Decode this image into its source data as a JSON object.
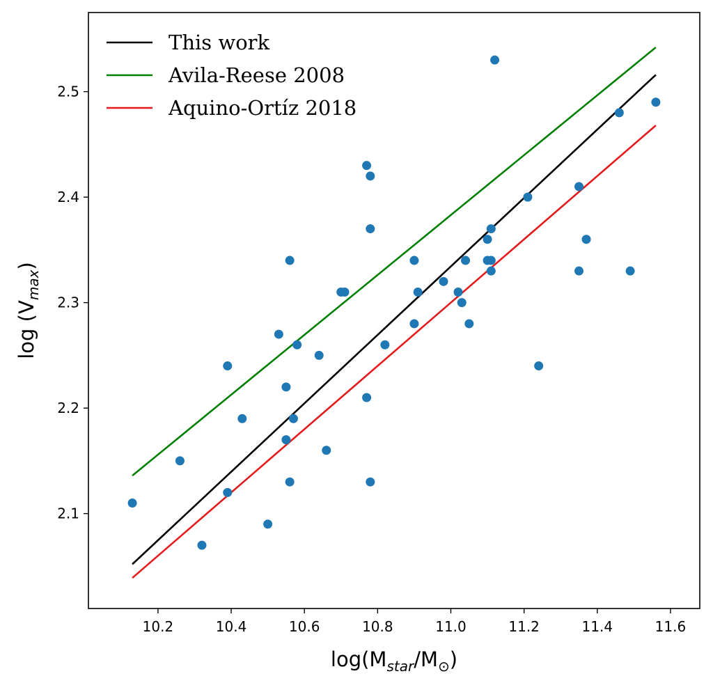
{
  "chart_data": {
    "type": "scatter",
    "xlabel": {
      "prefix": "log(M",
      "sub1": "star",
      "mid": "/M",
      "sub2": "⊙",
      "suffix": ")"
    },
    "ylabel": {
      "prefix": "log (V",
      "sub": "max",
      "suffix": ")"
    },
    "xlim": [
      10.01,
      11.68
    ],
    "ylim": [
      2.01,
      2.575
    ],
    "x_ticks": [
      "10.2",
      "10.4",
      "10.6",
      "10.8",
      "11.0",
      "11.2",
      "11.4",
      "11.6"
    ],
    "y_ticks": [
      "2.1",
      "2.2",
      "2.3",
      "2.4",
      "2.5"
    ],
    "grid": false,
    "legend_position": "top-left",
    "lines": [
      {
        "name": "This work",
        "color": "#000000",
        "x": [
          10.13,
          11.56
        ],
        "y": [
          2.052,
          2.516
        ]
      },
      {
        "name": "Avila-Reese 2008",
        "color": "#008000",
        "x": [
          10.13,
          11.56
        ],
        "y": [
          2.136,
          2.542
        ]
      },
      {
        "name": "Aquino-Ortíz 2018",
        "color": "#e41a1c",
        "x": [
          10.13,
          11.56
        ],
        "y": [
          2.039,
          2.468
        ]
      }
    ],
    "scatter": {
      "color": "#1f77b4",
      "points": [
        [
          10.13,
          2.11
        ],
        [
          10.26,
          2.15
        ],
        [
          10.32,
          2.07
        ],
        [
          10.39,
          2.24
        ],
        [
          10.39,
          2.12
        ],
        [
          10.43,
          2.19
        ],
        [
          10.5,
          2.09
        ],
        [
          10.53,
          2.27
        ],
        [
          10.55,
          2.22
        ],
        [
          10.55,
          2.17
        ],
        [
          10.56,
          2.34
        ],
        [
          10.56,
          2.13
        ],
        [
          10.57,
          2.19
        ],
        [
          10.58,
          2.26
        ],
        [
          10.64,
          2.25
        ],
        [
          10.66,
          2.16
        ],
        [
          10.7,
          2.31
        ],
        [
          10.71,
          2.31
        ],
        [
          10.77,
          2.43
        ],
        [
          10.77,
          2.21
        ],
        [
          10.78,
          2.42
        ],
        [
          10.78,
          2.37
        ],
        [
          10.78,
          2.13
        ],
        [
          10.82,
          2.26
        ],
        [
          10.9,
          2.34
        ],
        [
          10.9,
          2.28
        ],
        [
          10.91,
          2.31
        ],
        [
          10.98,
          2.32
        ],
        [
          11.02,
          2.31
        ],
        [
          11.03,
          2.3
        ],
        [
          11.04,
          2.34
        ],
        [
          11.05,
          2.28
        ],
        [
          11.1,
          2.36
        ],
        [
          11.1,
          2.34
        ],
        [
          11.11,
          2.37
        ],
        [
          11.11,
          2.34
        ],
        [
          11.11,
          2.33
        ],
        [
          11.12,
          2.53
        ],
        [
          11.21,
          2.4
        ],
        [
          11.24,
          2.24
        ],
        [
          11.35,
          2.41
        ],
        [
          11.35,
          2.33
        ],
        [
          11.37,
          2.36
        ],
        [
          11.46,
          2.48
        ],
        [
          11.49,
          2.33
        ],
        [
          11.56,
          2.49
        ]
      ]
    }
  }
}
